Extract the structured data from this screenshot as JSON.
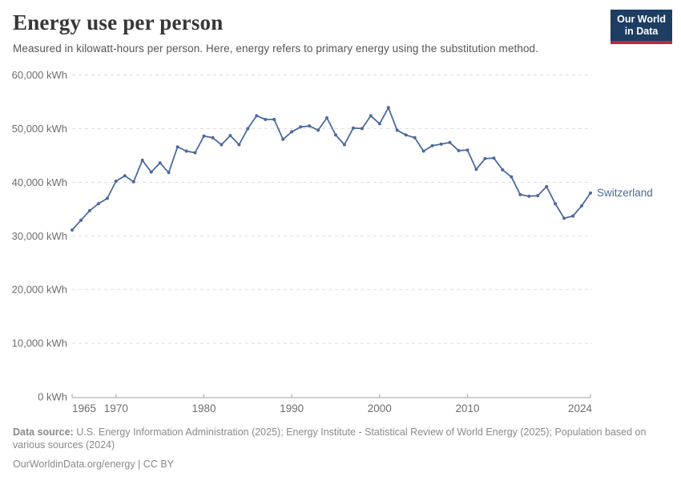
{
  "header": {
    "title": "Energy use per person",
    "subtitle": "Measured in kilowatt-hours per person. Here, energy refers to primary energy using the substitution method."
  },
  "logo": {
    "line1": "Our World",
    "line2": "in Data",
    "bg_color": "#1d3d63",
    "bar_color": "#c2273d"
  },
  "chart_data": {
    "type": "line",
    "title": "Energy use per person",
    "unit": "kWh",
    "grid": "horizontal-dashed",
    "legend": "end-of-line-label",
    "xlim": [
      1965,
      2024
    ],
    "ylim": [
      0,
      60000
    ],
    "x": [
      1965,
      1966,
      1967,
      1968,
      1969,
      1970,
      1971,
      1972,
      1973,
      1974,
      1975,
      1976,
      1977,
      1978,
      1979,
      1980,
      1981,
      1982,
      1983,
      1984,
      1985,
      1986,
      1987,
      1988,
      1989,
      1990,
      1991,
      1992,
      1993,
      1994,
      1995,
      1996,
      1997,
      1998,
      1999,
      2000,
      2001,
      2002,
      2003,
      2004,
      2005,
      2006,
      2007,
      2008,
      2009,
      2010,
      2011,
      2012,
      2013,
      2014,
      2015,
      2016,
      2017,
      2018,
      2019,
      2020,
      2021,
      2022,
      2023,
      2024
    ],
    "series": [
      {
        "name": "Switzerland",
        "color": "#4c6a9c",
        "values": [
          31100,
          32900,
          34700,
          36000,
          37000,
          40200,
          41200,
          40100,
          44100,
          41900,
          43600,
          41800,
          46600,
          45800,
          45500,
          48600,
          48300,
          47000,
          48700,
          47000,
          50000,
          52400,
          51700,
          51700,
          48000,
          49400,
          50300,
          50500,
          49700,
          52000,
          48800,
          47000,
          50100,
          50000,
          52400,
          50900,
          53900,
          49700,
          48800,
          48300,
          45800,
          46800,
          47100,
          47400,
          45900,
          46000,
          42400,
          44400,
          44500,
          42300,
          41000,
          37700,
          37400,
          37500,
          39200,
          36000,
          33300,
          33700,
          35600,
          38000
        ]
      }
    ],
    "y_ticks": [
      {
        "value": 0,
        "label": "0 kWh"
      },
      {
        "value": 10000,
        "label": "10,000 kWh"
      },
      {
        "value": 20000,
        "label": "20,000 kWh"
      },
      {
        "value": 30000,
        "label": "30,000 kWh"
      },
      {
        "value": 40000,
        "label": "40,000 kWh"
      },
      {
        "value": 50000,
        "label": "50,000 kWh"
      },
      {
        "value": 60000,
        "label": "60,000 kWh"
      }
    ],
    "x_ticks": [
      {
        "year": 1965,
        "label": "1965",
        "align": "start",
        "tick": false
      },
      {
        "year": 1970,
        "label": "1970",
        "align": "middle",
        "tick": true
      },
      {
        "year": 1980,
        "label": "1980",
        "align": "middle",
        "tick": true
      },
      {
        "year": 1990,
        "label": "1990",
        "align": "middle",
        "tick": true
      },
      {
        "year": 2000,
        "label": "2000",
        "align": "middle",
        "tick": true
      },
      {
        "year": 2010,
        "label": "2010",
        "align": "middle",
        "tick": true
      },
      {
        "year": 2024,
        "label": "2024",
        "align": "end",
        "tick": false
      }
    ],
    "colors": {
      "line": "#4c6a9c",
      "gridline": "#dcdcdc",
      "axis": "#a1a1a1",
      "tick_label": "#6e6e6e"
    }
  },
  "footer": {
    "data_source_label": "Data source:",
    "data_source_text": "U.S. Energy Information Administration (2025); Energy Institute - Statistical Review of World Energy (2025); Population based on various sources (2024)",
    "credit": "OurWorldinData.org/energy | CC BY"
  }
}
